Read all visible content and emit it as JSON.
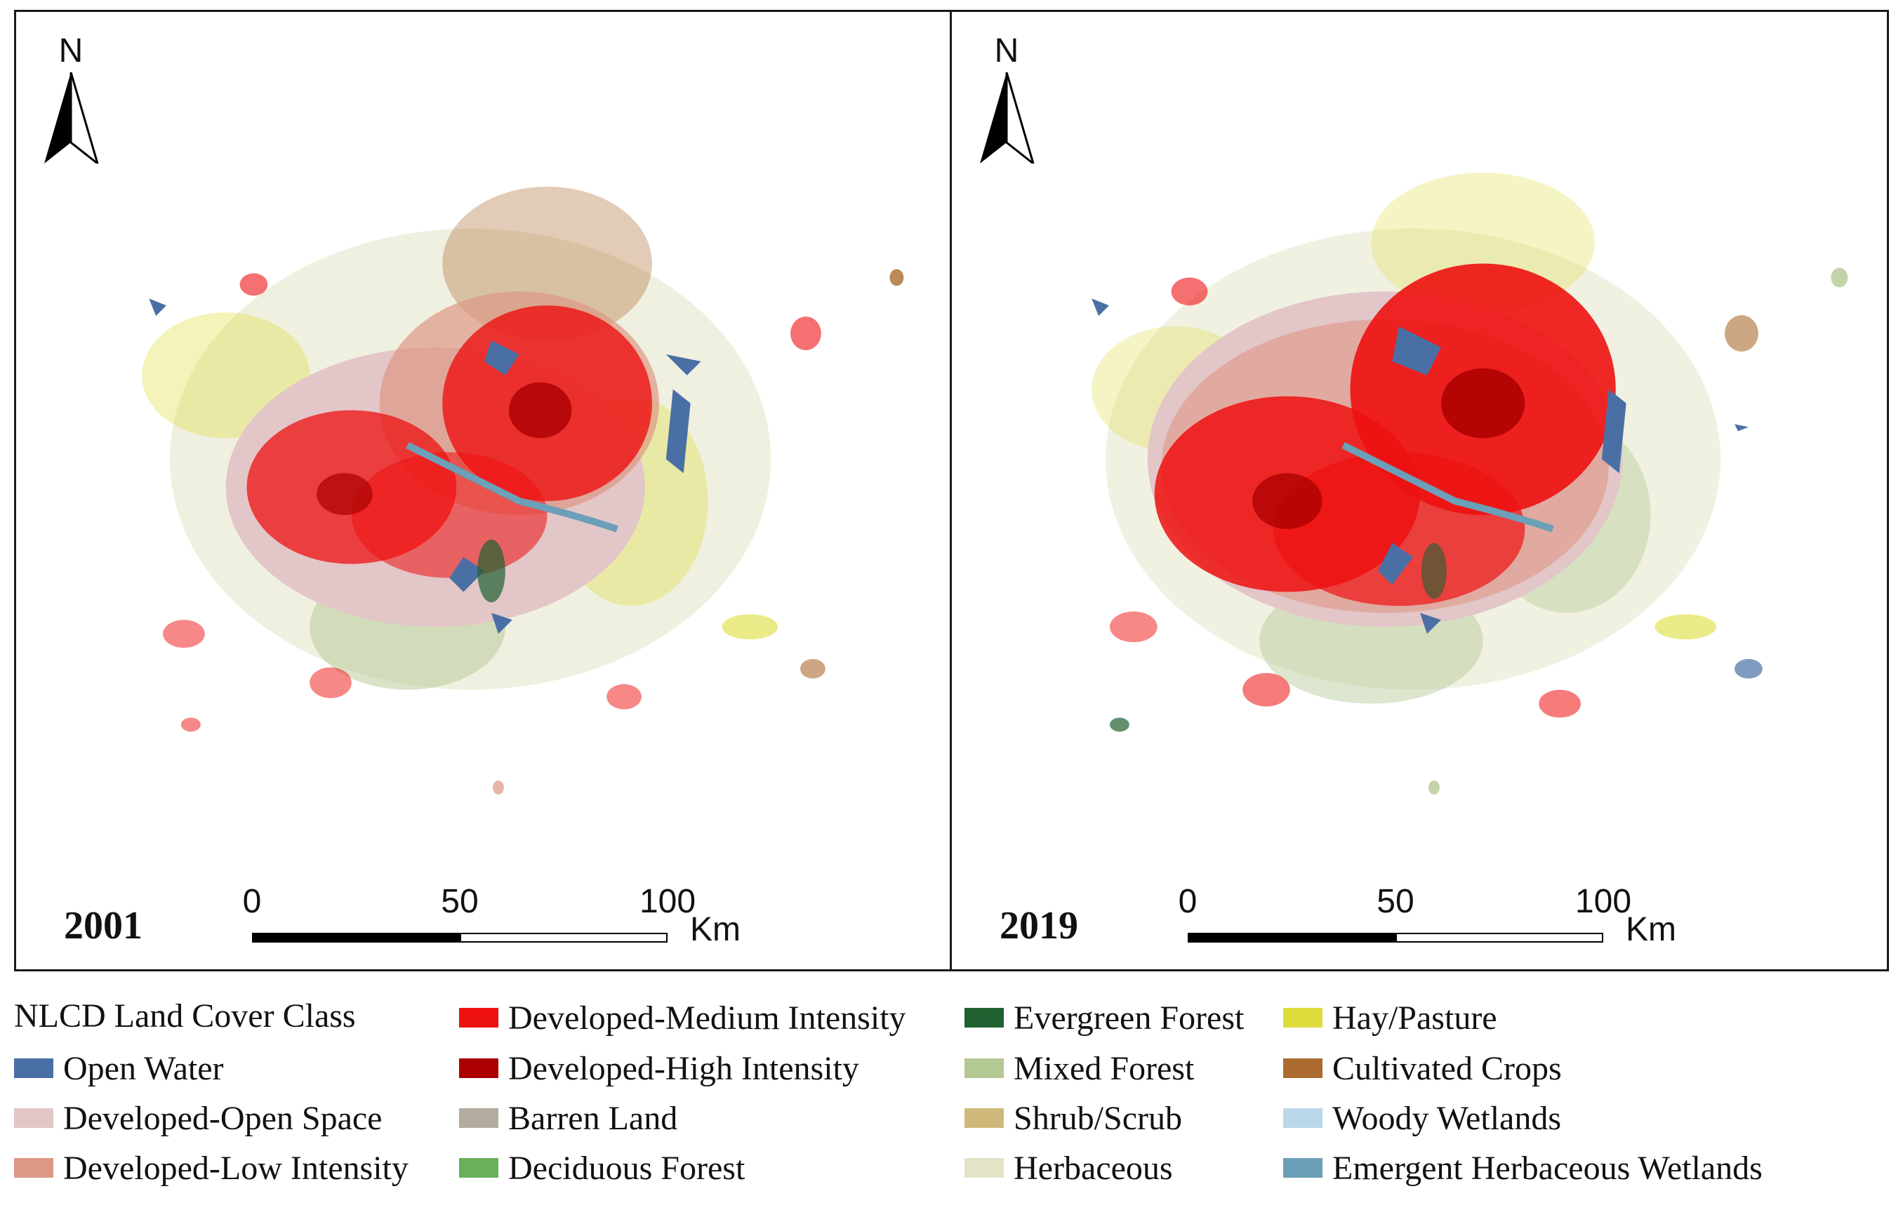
{
  "panels": [
    {
      "year": "2001",
      "north": "N",
      "scale": {
        "ticks": [
          "0",
          "50",
          "100"
        ],
        "unit": "Km"
      }
    },
    {
      "year": "2019",
      "north": "N",
      "scale": {
        "ticks": [
          "0",
          "50",
          "100"
        ],
        "unit": "Km"
      }
    }
  ],
  "legend": {
    "title": "NLCD Land Cover Class",
    "items": [
      {
        "label": "Open Water",
        "color": "#4a6fa5"
      },
      {
        "label": "Developed-Open Space",
        "color": "#e3c6c8"
      },
      {
        "label": "Developed-Low Intensity",
        "color": "#dd9785"
      },
      {
        "label": "Developed-Medium Intensity",
        "color": "#ee1111"
      },
      {
        "label": "Developed-High Intensity",
        "color": "#aa0000"
      },
      {
        "label": "Barren Land",
        "color": "#b3ad9f"
      },
      {
        "label": "Deciduous Forest",
        "color": "#6aaf5c"
      },
      {
        "label": "Evergreen Forest",
        "color": "#1f6130"
      },
      {
        "label": "Mixed Forest",
        "color": "#b4c894"
      },
      {
        "label": "Shrub/Scrub",
        "color": "#cfb97a"
      },
      {
        "label": "Herbaceous",
        "color": "#e3e3c6"
      },
      {
        "label": "Hay/Pasture",
        "color": "#dedc3a"
      },
      {
        "label": "Cultivated Crops",
        "color": "#ab6b31"
      },
      {
        "label": "Woody Wetlands",
        "color": "#bad7ea"
      },
      {
        "label": "Emergent Herbaceous Wetlands",
        "color": "#6c9fb8"
      }
    ]
  }
}
